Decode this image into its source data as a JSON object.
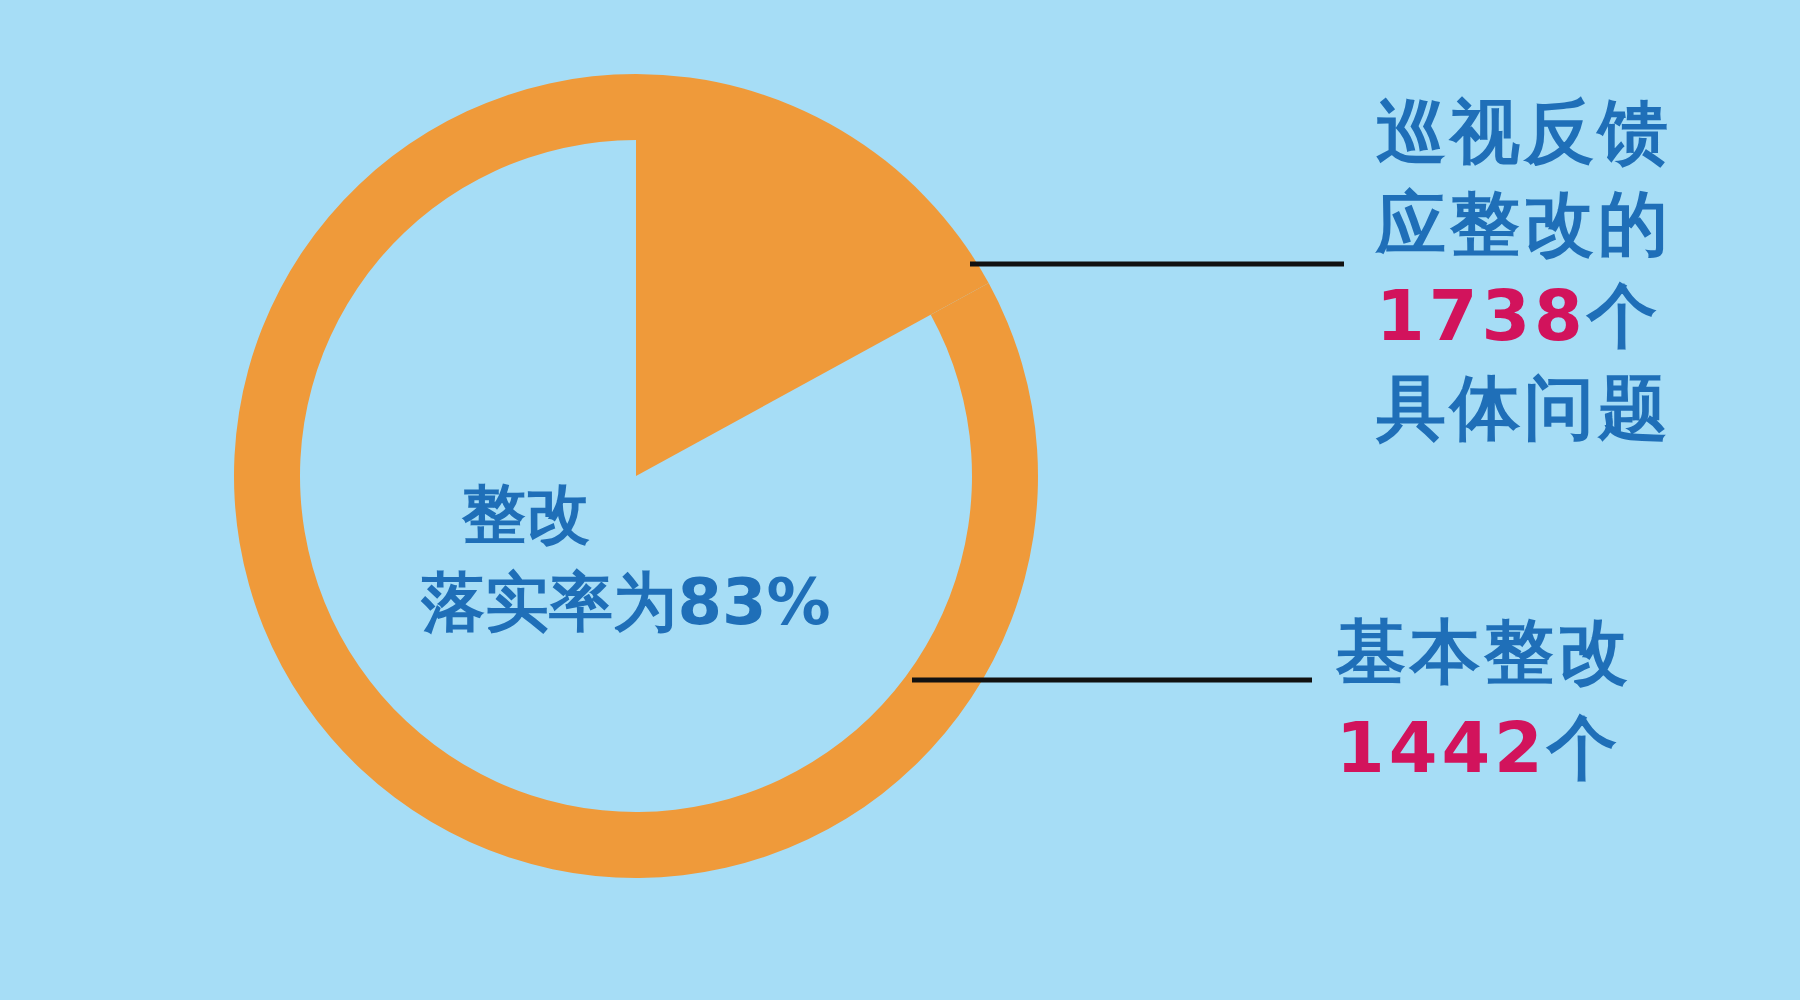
{
  "chart_data": {
    "type": "pie",
    "title": "巡视反馈应整改的1738个具体问题",
    "categories": [
      null,
      "基本整改"
    ],
    "values": [
      296,
      1442
    ],
    "colors": [
      "#ef9a3a",
      "#ef9a3a"
    ],
    "value_labels": [
      null,
      "1442个"
    ],
    "annotations": [
      "整改",
      "落实率为83%"
    ]
  }
}
